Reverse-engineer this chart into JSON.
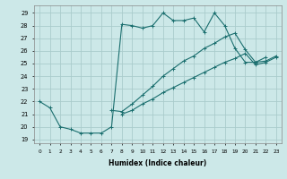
{
  "title": "",
  "xlabel": "Humidex (Indice chaleur)",
  "background_color": "#cce8e8",
  "grid_color": "#aacccc",
  "line_color": "#1a6e6e",
  "xlim": [
    -0.5,
    23.5
  ],
  "ylim": [
    18.7,
    29.6
  ],
  "yticks": [
    19,
    20,
    21,
    22,
    23,
    24,
    25,
    26,
    27,
    28,
    29
  ],
  "xticks": [
    0,
    1,
    2,
    3,
    4,
    5,
    6,
    7,
    8,
    9,
    10,
    11,
    12,
    13,
    14,
    15,
    16,
    17,
    18,
    19,
    20,
    21,
    22,
    23
  ],
  "series": [
    {
      "x": [
        0,
        1,
        2,
        3,
        4,
        5,
        6,
        7,
        8,
        9,
        10,
        11,
        12,
        13,
        14,
        15,
        16,
        17,
        18,
        19,
        20,
        21,
        22
      ],
      "y": [
        22,
        21.5,
        20,
        19.8,
        19.5,
        19.5,
        19.5,
        20,
        28.1,
        28.0,
        27.8,
        28.0,
        29.0,
        28.4,
        28.4,
        28.6,
        27.5,
        29.0,
        28.0,
        26.2,
        25.1,
        25.1,
        25.5
      ]
    },
    {
      "x": [
        7,
        8,
        9,
        10,
        11,
        12,
        13,
        14,
        15,
        16,
        17,
        18,
        19,
        20,
        21,
        22,
        23
      ],
      "y": [
        21.3,
        21.2,
        21.8,
        22.5,
        23.2,
        24.0,
        24.6,
        25.2,
        25.6,
        26.2,
        26.6,
        27.1,
        27.4,
        26.1,
        25.1,
        25.2,
        25.6
      ]
    },
    {
      "x": [
        8,
        9,
        10,
        11,
        12,
        13,
        14,
        15,
        16,
        17,
        18,
        19,
        20,
        21,
        22,
        23
      ],
      "y": [
        21.0,
        21.3,
        21.8,
        22.2,
        22.7,
        23.1,
        23.5,
        23.9,
        24.3,
        24.7,
        25.1,
        25.4,
        25.8,
        24.9,
        25.1,
        25.5
      ]
    }
  ]
}
